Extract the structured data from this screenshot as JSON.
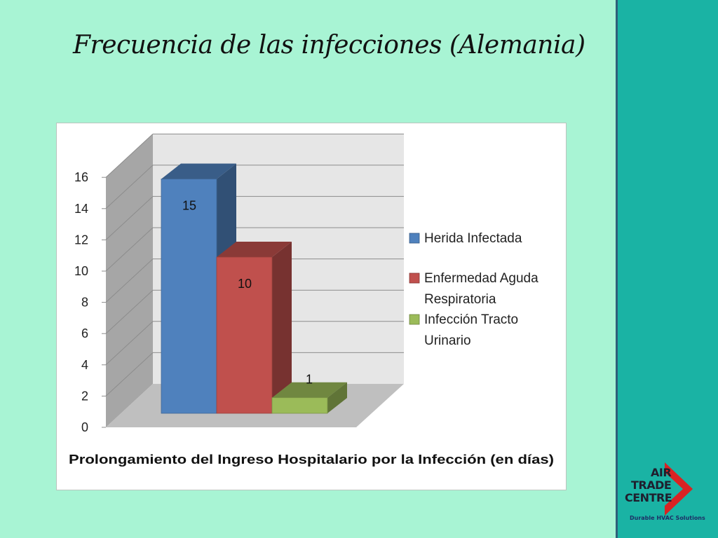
{
  "slide": {
    "title": "Frecuencia de las infecciones (Alemania)"
  },
  "chart_data": {
    "type": "bar",
    "title": "",
    "xlabel": "Prolongamiento del Ingreso Hospitalario por la Infección (en días)",
    "ylabel": "",
    "ylim": [
      0,
      16
    ],
    "yticks": [
      0,
      2,
      4,
      6,
      8,
      10,
      12,
      14,
      16
    ],
    "grid": true,
    "three_d": true,
    "legend_position": "right",
    "series": [
      {
        "name": "Herida Infectada",
        "values": [
          15
        ],
        "label": "15",
        "color": "#4f81bd"
      },
      {
        "name": "Enfermedad Aguda Respiratoria",
        "values": [
          10
        ],
        "label": "10",
        "color": "#c0504d"
      },
      {
        "name": "Infección Tracto Urinario",
        "values": [
          1
        ],
        "label": "1",
        "color": "#9bbb59"
      }
    ],
    "legend": [
      {
        "lines": [
          "Herida Infectada"
        ]
      },
      {
        "lines": [
          "Enfermedad Aguda",
          "Respiratoria"
        ]
      },
      {
        "lines": [
          "Infección Tracto",
          "Urinario"
        ]
      }
    ]
  },
  "logo": {
    "words": [
      "AIR",
      "TRADE",
      "CENTRE"
    ],
    "tagline": "Durable HVAC Solutions",
    "accent_color": "#d92323"
  }
}
